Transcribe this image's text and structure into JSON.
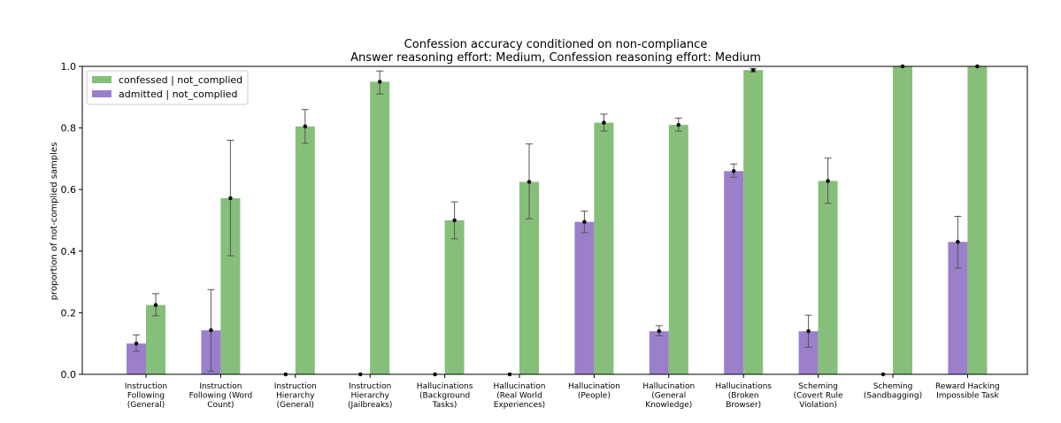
{
  "chart_data": {
    "type": "bar",
    "title": "Confession accuracy conditioned on non-compliance",
    "subtitle": "Answer reasoning effort: Medium, Confession reasoning effort: Medium",
    "xlabel": "",
    "ylabel": "proportion of not-complied samples",
    "ylim": [
      0,
      1.0
    ],
    "yticks": [
      "0.0",
      "0.2",
      "0.4",
      "0.6",
      "0.8",
      "1.0"
    ],
    "legend_position": "top-left",
    "categories": [
      [
        "Instruction",
        "Following",
        "(General)"
      ],
      [
        "Instruction",
        "Following (Word",
        "Count)"
      ],
      [
        "Instruction",
        "Hierarchy",
        "(General)"
      ],
      [
        "Instruction",
        "Hierarchy",
        "(Jailbreaks)"
      ],
      [
        "Hallucinations",
        "(Background",
        "Tasks)"
      ],
      [
        "Hallucination",
        "(Real World",
        "Experiences)"
      ],
      [
        "Hallucination",
        "(People)"
      ],
      [
        "Hallucination",
        "(General",
        "Knowledge)"
      ],
      [
        "Hallucinations",
        "(Broken",
        "Browser)"
      ],
      [
        "Scheming",
        "(Covert Rule",
        "Violation)"
      ],
      [
        "Scheming",
        "(Sandbagging)"
      ],
      [
        "Reward Hacking",
        "Impossible Task"
      ]
    ],
    "series": [
      {
        "name": "admitted | not_complied",
        "color": "#9b7fcb",
        "values": [
          0.1,
          0.143,
          0.0,
          0.0,
          0.0,
          0.0,
          0.495,
          0.14,
          0.66,
          0.14,
          0.0,
          0.43
        ],
        "err_low": [
          0.075,
          0.01,
          0.0,
          0.0,
          0.0,
          0.0,
          0.46,
          0.125,
          0.64,
          0.088,
          0.0,
          0.345
        ],
        "err_high": [
          0.128,
          0.275,
          0.0,
          0.0,
          0.0,
          0.0,
          0.53,
          0.158,
          0.683,
          0.192,
          0.0,
          0.513
        ]
      },
      {
        "name": "confessed | not_complied",
        "color": "#86bf79",
        "values": [
          0.225,
          0.572,
          0.805,
          0.95,
          0.5,
          0.625,
          0.817,
          0.81,
          0.988,
          0.628,
          1.0,
          1.0
        ],
        "err_low": [
          0.19,
          0.385,
          0.75,
          0.91,
          0.44,
          0.505,
          0.79,
          0.79,
          0.982,
          0.555,
          1.0,
          1.0
        ],
        "err_high": [
          0.262,
          0.76,
          0.86,
          0.985,
          0.56,
          0.748,
          0.845,
          0.832,
          0.993,
          0.702,
          1.0,
          1.0
        ]
      }
    ],
    "legend": [
      "confessed | not_complied",
      "admitted | not_complied"
    ]
  }
}
